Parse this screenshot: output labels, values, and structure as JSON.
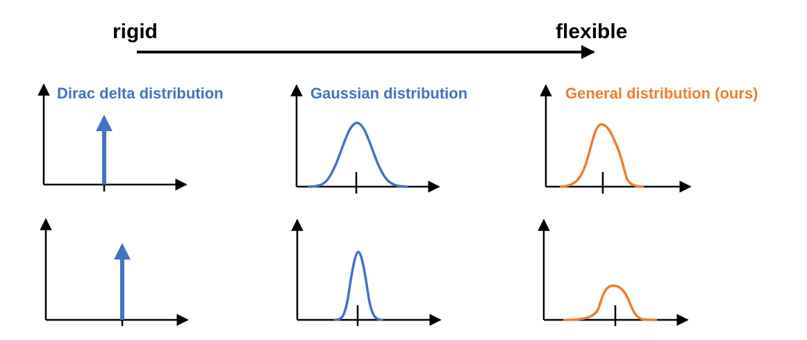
{
  "scale": {
    "left_label": "rigid",
    "right_label": "flexible"
  },
  "columns": [
    {
      "title": "Dirac delta distribution",
      "color": "#4472C4",
      "kind": "dirac"
    },
    {
      "title": "Gaussian distribution",
      "color": "#4472C4",
      "kind": "gaussian"
    },
    {
      "title": "General distribution (ours)",
      "color": "#ED7D31",
      "kind": "general"
    }
  ],
  "colors": {
    "axis": "#000000",
    "blue": "#4472C4",
    "orange": "#ED7D31"
  }
}
